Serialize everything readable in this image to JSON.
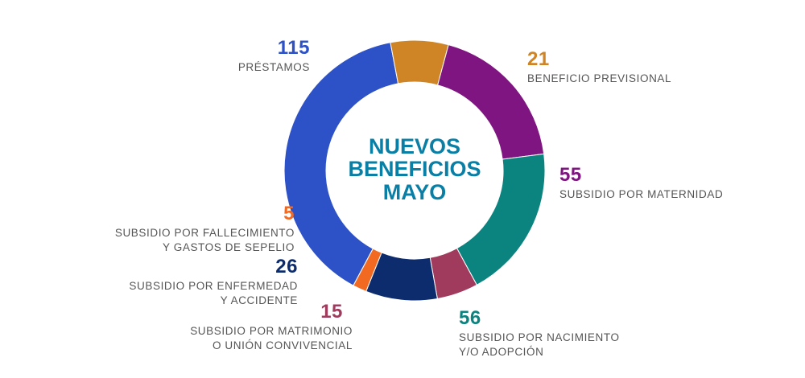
{
  "chart_data": {
    "type": "pie",
    "title_lines": [
      "NUEVOS",
      "BENEFICIOS",
      "MAYO"
    ],
    "slices": [
      {
        "value": 115,
        "label_lines": [
          "PRÉSTAMOS"
        ],
        "color": "#2d51c6"
      },
      {
        "value": 21,
        "label_lines": [
          "BENEFICIO PREVISIONAL"
        ],
        "color": "#cf8426"
      },
      {
        "value": 55,
        "label_lines": [
          "SUBSIDIO POR MATERNIDAD"
        ],
        "color": "#7f1580"
      },
      {
        "value": 56,
        "label_lines": [
          "SUBSIDIO POR NACIMIENTO",
          "Y/O ADOPCIÓN"
        ],
        "color": "#0b8480"
      },
      {
        "value": 15,
        "label_lines": [
          "SUBSIDIO POR MATRIMONIO",
          "O UNIÓN CONVIVENCIAL"
        ],
        "color": "#a03b5e"
      },
      {
        "value": 26,
        "label_lines": [
          "SUBSIDIO POR ENFERMEDAD",
          "Y ACCIDENTE"
        ],
        "color": "#0d2c6e"
      },
      {
        "value": 5,
        "label_lines": [
          "SUBSIDIO POR FALLECIMIENTO",
          "Y GASTOS DE SEPELIO"
        ],
        "color": "#f26a22"
      }
    ]
  }
}
